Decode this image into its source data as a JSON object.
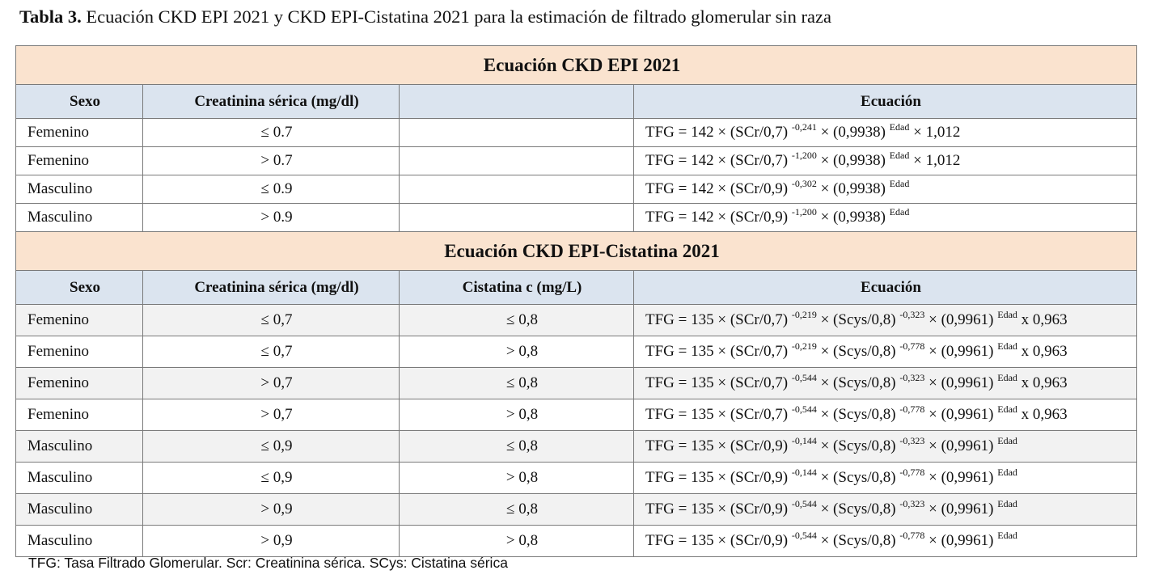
{
  "caption": {
    "label": "Tabla 3.",
    "text": " Ecuación CKD EPI 2021 y CKD EPI-Cistatina 2021 para la estimación de filtrado glomerular sin raza"
  },
  "section1": {
    "title": "Ecuación CKD EPI 2021",
    "headers": [
      "Sexo",
      "Creatinina sérica (mg/dl)",
      "",
      "Ecuación"
    ],
    "rows": [
      {
        "sexo": "Femenino",
        "creat": "≤ 0.7",
        "eq": [
          "TFG = 142 × (SCr/0,7) ",
          "-0,241",
          " × (0,9938) ",
          "Edad",
          " × 1,012"
        ]
      },
      {
        "sexo": "Femenino",
        "creat": "> 0.7",
        "eq": [
          "TFG = 142 × (SCr/0,7) ",
          "-1,200",
          " × (0,9938) ",
          "Edad",
          " × 1,012"
        ]
      },
      {
        "sexo": "Masculino",
        "creat": "≤ 0.9",
        "eq": [
          "TFG = 142 × (SCr/0,9) ",
          "-0,302",
          " × (0,9938) ",
          "Edad",
          ""
        ]
      },
      {
        "sexo": "Masculino",
        "creat": "> 0.9",
        "eq": [
          "TFG = 142 × (SCr/0,9) ",
          "-1,200",
          " × (0,9938) ",
          "Edad",
          ""
        ]
      }
    ]
  },
  "section2": {
    "title": "Ecuación CKD EPI-Cistatina 2021",
    "headers": [
      "Sexo",
      "Creatinina sérica (mg/dl)",
      "Cistatina c (mg/L)",
      "Ecuación"
    ],
    "rows": [
      {
        "sexo": "Femenino",
        "creat": "≤ 0,7",
        "cis": "≤ 0,8",
        "eq": [
          "TFG = 135 × (SCr/0,7) ",
          "-0,219",
          " × (Scys/0,8) ",
          "-0,323",
          " × (0,9961) ",
          "Edad",
          " x 0,963"
        ]
      },
      {
        "sexo": "Femenino",
        "creat": "≤ 0,7",
        "cis": "> 0,8",
        "eq": [
          "TFG = 135 × (SCr/0,7) ",
          "-0,219",
          " × (Scys/0,8) ",
          "-0,778",
          " × (0,9961) ",
          "Edad",
          " x 0,963"
        ]
      },
      {
        "sexo": "Femenino",
        "creat": "> 0,7",
        "cis": "≤ 0,8",
        "eq": [
          "TFG = 135 × (SCr/0,7) ",
          "-0,544",
          " × (Scys/0,8) ",
          "-0,323",
          " × (0,9961) ",
          "Edad",
          " x 0,963"
        ]
      },
      {
        "sexo": "Femenino",
        "creat": "> 0,7",
        "cis": "> 0,8",
        "eq": [
          "TFG = 135 × (SCr/0,7) ",
          "-0,544",
          " × (Scys/0,8) ",
          "-0,778",
          " × (0,9961) ",
          "Edad",
          " x 0,963"
        ]
      },
      {
        "sexo": "Masculino",
        "creat": "≤ 0,9",
        "cis": "≤ 0,8",
        "eq": [
          "TFG = 135 × (SCr/0,9) ",
          "-0,144",
          " × (Scys/0,8) ",
          "-0,323",
          " × (0,9961) ",
          "Edad",
          ""
        ]
      },
      {
        "sexo": "Masculino",
        "creat": "≤ 0,9",
        "cis": "> 0,8",
        "eq": [
          "TFG = 135 × (SCr/0,9) ",
          "-0,144",
          " × (Scys/0,8) ",
          "-0,778",
          " × (0,9961) ",
          "Edad",
          ""
        ]
      },
      {
        "sexo": "Masculino",
        "creat": "> 0,9",
        "cis": "≤ 0,8",
        "eq": [
          "TFG = 135 × (SCr/0,9) ",
          "-0,544",
          " × (Scys/0,8) ",
          "-0,323",
          " × (0,9961) ",
          "Edad",
          ""
        ]
      },
      {
        "sexo": "Masculino",
        "creat": "> 0,9",
        "cis": "> 0,8",
        "eq": [
          "TFG = 135 × (SCr/0,9) ",
          "-0,544",
          " × (Scys/0,8) ",
          "-0,778",
          " × (0,9961) ",
          "Edad",
          ""
        ]
      }
    ]
  },
  "footnote": "TFG: Tasa Filtrado Glomerular. Scr: Creatinina sérica. SCys: Cistatina sérica",
  "colors": {
    "section_title_bg": "#fae3cf",
    "header_bg": "#dbe4ef",
    "shaded_row_bg": "#f2f2f2",
    "border": "#7a7a7a"
  }
}
